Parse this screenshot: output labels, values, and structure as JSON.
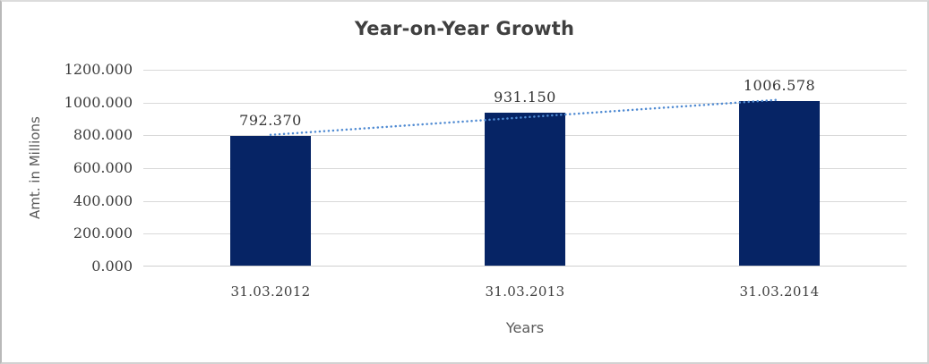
{
  "chart_data": {
    "type": "bar",
    "title": "Year-on-Year Growth",
    "categories": [
      "31.03.2012",
      "31.03.2013",
      "31.03.2014"
    ],
    "values": [
      792.37,
      931.15,
      1006.578
    ],
    "data_labels": [
      "792.370",
      "931.150",
      "1006.578"
    ],
    "xlabel": "Years",
    "ylabel": "Amt. in Millions",
    "y_ticks": [
      "1200.000",
      "1000.000",
      "800.000",
      "600.000",
      "400.000",
      "200.000",
      "0.000"
    ],
    "ylim": [
      0,
      1200
    ],
    "grid": "horizontal",
    "legend": "none",
    "trendline": {
      "type": "linear",
      "style": "dotted",
      "color": "#4f8ad2"
    },
    "colors": {
      "bar": "#062465",
      "gridline": "#d9d9d9",
      "axis_line": "#cfcfcf",
      "title": "#404040",
      "tick_label": "#3d3d3d",
      "axis_title": "#595959",
      "data_label": "#343434"
    }
  }
}
